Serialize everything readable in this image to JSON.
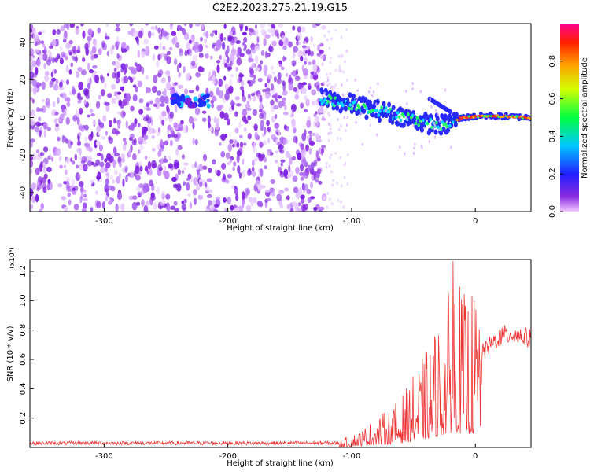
{
  "title": "C2E2.2023.275.21.19.G15",
  "chart_data": [
    {
      "type": "heatmap",
      "xlabel": "Height of straight line (km)",
      "ylabel": "Frequency (Hz)",
      "xlim": [
        -360,
        45
      ],
      "ylim": [
        -50,
        50
      ],
      "x_ticks": [
        "-300",
        "-200",
        "-100",
        "0"
      ],
      "y_ticks": [
        "-40",
        "-20",
        "0",
        "20",
        "40"
      ],
      "colorbar": {
        "label": "Normalized spectral amplitude",
        "range": [
          0,
          1
        ],
        "ticks": [
          "0.0",
          "0.2",
          "0.4",
          "0.6",
          "0.8"
        ]
      },
      "features": {
        "noise_region_x": [
          -360,
          -122
        ],
        "mid_blob": {
          "x": [
            -245,
            -215
          ],
          "freq": 9
        },
        "main_trace": [
          [
            -125,
            10
          ],
          [
            -100,
            7
          ],
          [
            -80,
            4
          ],
          [
            -60,
            1
          ],
          [
            -40,
            -3
          ],
          [
            -25,
            -4
          ],
          [
            -10,
            0
          ],
          [
            10,
            1
          ],
          [
            45,
            0
          ]
        ],
        "upper_branch": [
          [
            -37,
            10
          ],
          [
            -20,
            3
          ]
        ]
      }
    },
    {
      "type": "line",
      "xlabel": "Height of straight line (km)",
      "ylabel": "SNR (10 * v/v)",
      "y_multiplier": "(x10⁴)",
      "xlim": [
        -360,
        45
      ],
      "ylim": [
        0,
        1.28
      ],
      "x_ticks": [
        "-300",
        "-200",
        "-100",
        "0"
      ],
      "y_ticks": [
        "0.2",
        "0.4",
        "0.6",
        "0.8",
        "1.0",
        "1.2"
      ],
      "series_color": "#ee3333",
      "envelope": [
        [
          -360,
          0.03
        ],
        [
          -110,
          0.03
        ],
        [
          -100,
          0.05
        ],
        [
          -90,
          0.08
        ],
        [
          -80,
          0.12
        ],
        [
          -70,
          0.15
        ],
        [
          -60,
          0.2
        ],
        [
          -50,
          0.28
        ],
        [
          -40,
          0.38
        ],
        [
          -30,
          0.5
        ],
        [
          -22,
          0.62
        ],
        [
          -17,
          0.75
        ],
        [
          -10,
          0.6
        ],
        [
          0,
          0.62
        ],
        [
          10,
          0.7
        ],
        [
          20,
          0.78
        ],
        [
          30,
          0.8
        ],
        [
          45,
          0.76
        ]
      ],
      "peak": {
        "x": -18,
        "y": 1.27
      }
    }
  ]
}
